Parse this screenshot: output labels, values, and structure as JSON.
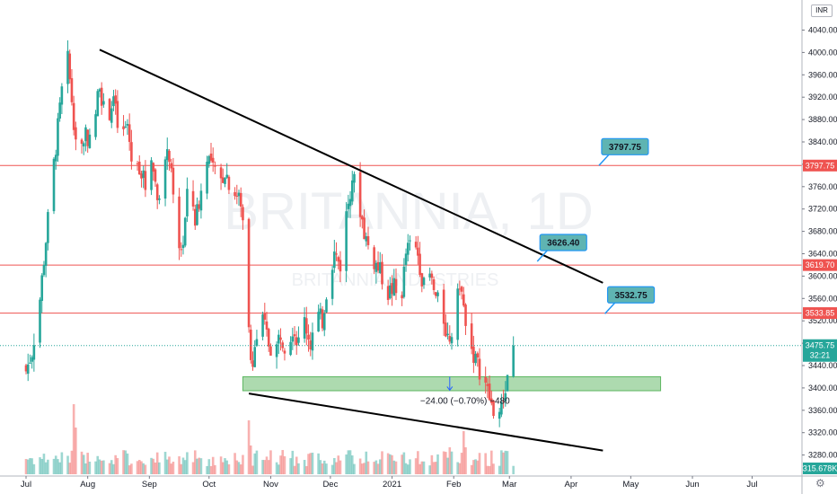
{
  "chart_data": {
    "type": "candlestick",
    "watermark": {
      "symbol_interval": "BRITANNIA, 1D",
      "description": "BRITANNIA INDUSTRIES"
    },
    "currency": "INR",
    "price_axis": {
      "ticks": [
        "4040.00",
        "4000.00",
        "3960.00",
        "3920.00",
        "3880.00",
        "3840.00",
        "3800.00",
        "3760.00",
        "3720.00",
        "3680.00",
        "3640.00",
        "3600.00",
        "3560.00",
        "3520.00",
        "3480.00",
        "3440.00",
        "3400.00",
        "3360.00",
        "3320.00",
        "3280.00"
      ],
      "range": [
        3265,
        4075
      ]
    },
    "time_axis": {
      "labels": [
        {
          "label": "Jul",
          "day": 0
        },
        {
          "label": "Aug",
          "day": 31
        },
        {
          "label": "Sep",
          "day": 62
        },
        {
          "label": "Oct",
          "day": 92
        },
        {
          "label": "Nov",
          "day": 123
        },
        {
          "label": "Dec",
          "day": 153
        },
        {
          "label": "2021",
          "day": 184
        },
        {
          "label": "Feb",
          "day": 215
        },
        {
          "label": "Mar",
          "day": 243
        },
        {
          "label": "Apr",
          "day": 274
        },
        {
          "label": "May",
          "day": 304
        },
        {
          "label": "Jun",
          "day": 335
        },
        {
          "label": "Jul",
          "day": 365
        }
      ]
    },
    "last_price": {
      "label": "3475.75",
      "countdown": "32:21",
      "value": 3475.75
    },
    "volume_label": "315.678K",
    "horizontal_levels": [
      {
        "label": "3797.75",
        "value": 3797.75
      },
      {
        "label": "3619.70",
        "value": 3619.7
      },
      {
        "label": "3533.85",
        "value": 3533.85
      }
    ],
    "callouts": [
      {
        "label": "3797.75",
        "value": 3797.75,
        "day": 288
      },
      {
        "label": "3626.40",
        "value": 3626.4,
        "day": 257
      },
      {
        "label": "3532.75",
        "value": 3532.75,
        "day": 291
      }
    ],
    "trendlines": [
      {
        "from": {
          "day": 37,
          "value": 4005
        },
        "to": {
          "day": 290,
          "value": 3588
        }
      },
      {
        "from": {
          "day": 112,
          "value": 3390
        },
        "to": {
          "day": 290,
          "value": 3288
        }
      }
    ],
    "support_zone": {
      "from_day": 109,
      "to_day": 319,
      "low": 3395,
      "high": 3420
    },
    "measure_label": "−24.00 (−0.70%) −480",
    "series": {
      "start": 3440,
      "anchors": [
        [
          0,
          3430
        ],
        [
          3,
          3465
        ],
        [
          7,
          3560
        ],
        [
          11,
          3700
        ],
        [
          14,
          3800
        ],
        [
          18,
          3930
        ],
        [
          21,
          3985
        ],
        [
          24,
          3880
        ],
        [
          27,
          3820
        ],
        [
          30,
          3860
        ],
        [
          33,
          3830
        ],
        [
          37,
          3950
        ],
        [
          40,
          3870
        ],
        [
          44,
          3920
        ],
        [
          47,
          3840
        ],
        [
          51,
          3870
        ],
        [
          54,
          3780
        ],
        [
          57,
          3800
        ],
        [
          60,
          3760
        ],
        [
          63,
          3820
        ],
        [
          66,
          3740
        ],
        [
          69,
          3790
        ],
        [
          72,
          3820
        ],
        [
          76,
          3640
        ],
        [
          79,
          3660
        ],
        [
          82,
          3780
        ],
        [
          85,
          3700
        ],
        [
          88,
          3750
        ],
        [
          91,
          3820
        ],
        [
          94,
          3790
        ],
        [
          97,
          3760
        ],
        [
          100,
          3790
        ],
        [
          103,
          3760
        ],
        [
          107,
          3740
        ],
        [
          110,
          3680
        ],
        [
          113,
          3440
        ],
        [
          116,
          3490
        ],
        [
          119,
          3520
        ],
        [
          122,
          3480
        ],
        [
          125,
          3460
        ],
        [
          128,
          3500
        ],
        [
          131,
          3470
        ],
        [
          134,
          3510
        ],
        [
          137,
          3480
        ],
        [
          140,
          3520
        ],
        [
          143,
          3480
        ],
        [
          146,
          3530
        ],
        [
          149,
          3520
        ],
        [
          152,
          3600
        ],
        [
          155,
          3640
        ],
        [
          158,
          3620
        ],
        [
          161,
          3710
        ],
        [
          164,
          3780
        ],
        [
          167,
          3740
        ],
        [
          170,
          3680
        ],
        [
          173,
          3640
        ],
        [
          176,
          3620
        ],
        [
          179,
          3600
        ],
        [
          182,
          3570
        ],
        [
          185,
          3580
        ],
        [
          188,
          3540
        ],
        [
          191,
          3640
        ],
        [
          194,
          3660
        ],
        [
          197,
          3640
        ],
        [
          200,
          3580
        ],
        [
          203,
          3600
        ],
        [
          206,
          3560
        ],
        [
          209,
          3540
        ],
        [
          212,
          3490
        ],
        [
          215,
          3500
        ],
        [
          218,
          3590
        ],
        [
          221,
          3520
        ],
        [
          224,
          3470
        ],
        [
          227,
          3440
        ],
        [
          230,
          3420
        ],
        [
          233,
          3380
        ],
        [
          236,
          3350
        ],
        [
          239,
          3360
        ],
        [
          242,
          3420
        ],
        [
          245,
          3475.75
        ]
      ],
      "volume": {
        "baseline": 18,
        "spikes": [
          [
            24,
            78
          ],
          [
            25,
            52
          ],
          [
            26,
            26
          ],
          [
            112,
            60
          ],
          [
            113,
            32
          ],
          [
            124,
            24
          ],
          [
            153,
            85
          ],
          [
            213,
            30
          ],
          [
            220,
            48
          ],
          [
            221,
            30
          ]
        ]
      }
    }
  },
  "ui": {
    "currency_button": "INR",
    "settings_icon": "gear-icon"
  }
}
